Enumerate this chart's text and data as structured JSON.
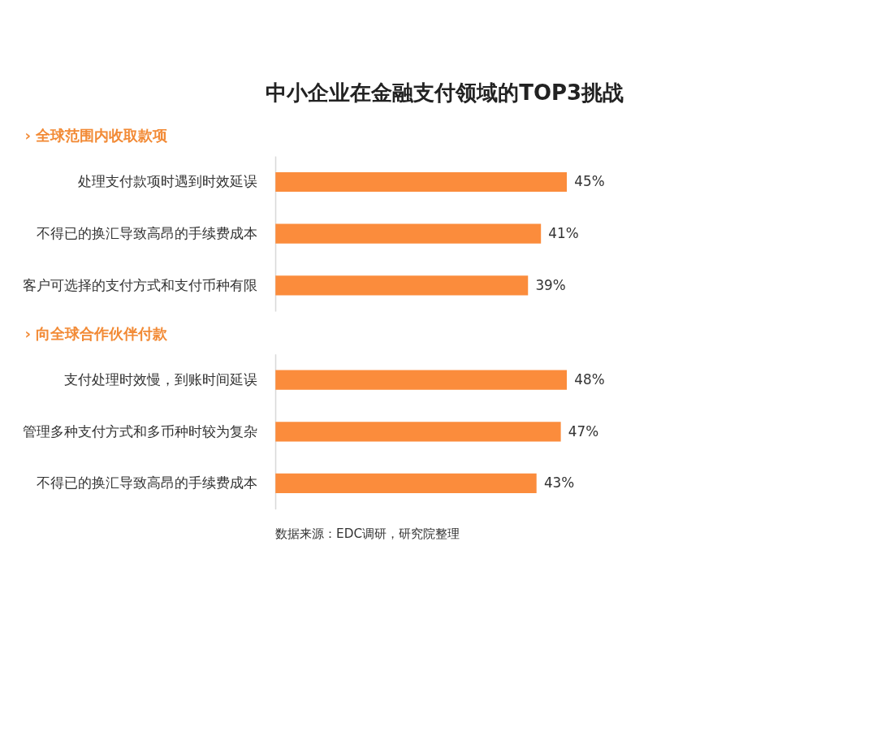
{
  "chart_data": [
    {
      "type": "bar",
      "orientation": "horizontal",
      "title": "中小企业在金融支付领域的TOP3挑战",
      "subtitle": "›  全球范围内收取款项",
      "categories": [
        "处理支付款项时遇到时效延误",
        "不得已的换汇导致高昂的手续费成本",
        "客户可选择的支付方式和支付币种有限"
      ],
      "values": [
        45,
        41,
        39
      ],
      "value_labels": [
        "45%",
        "41%",
        "39%"
      ],
      "color": "#fb8c3c",
      "tick_labels": "y",
      "grid": false
    },
    {
      "type": "bar",
      "orientation": "horizontal",
      "subtitle": "›  向全球合作伙伴付款",
      "categories": [
        "支付处理时效慢，到账时间延误",
        "管理多种支付方式和多币种时较为复杂",
        "不得已的换汇导致高昂的手续费成本"
      ],
      "values": [
        48,
        47,
        43
      ],
      "value_labels": [
        "48%",
        "47%",
        "43%"
      ],
      "color": "#fb8c3c",
      "tick_labels": "y",
      "grid": false,
      "annotations": [
        "数据来源：EDC调研，研究院整理"
      ]
    }
  ]
}
